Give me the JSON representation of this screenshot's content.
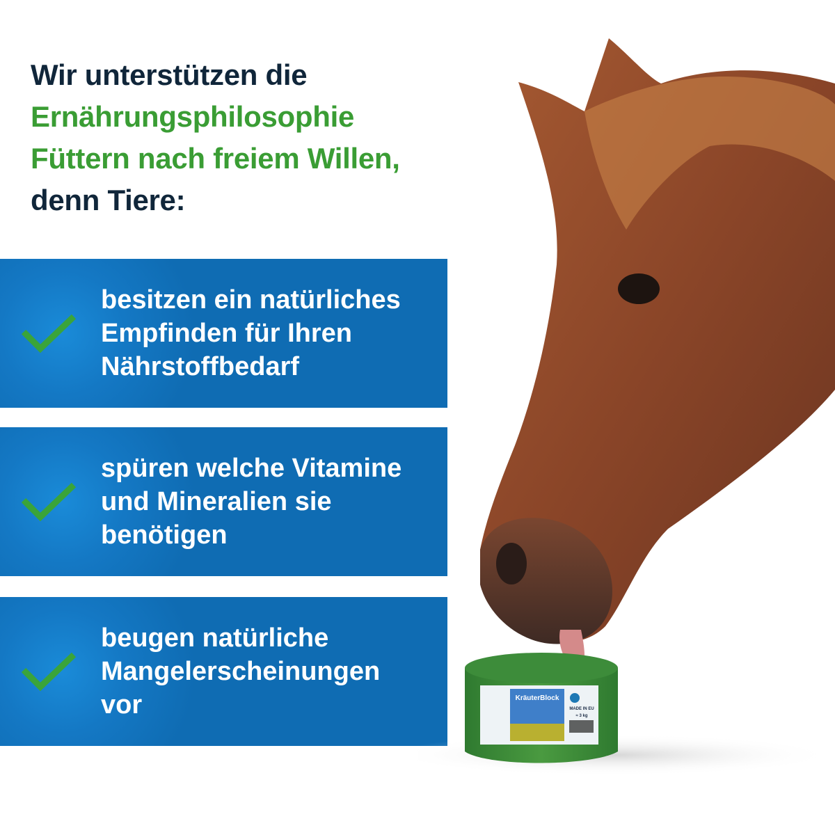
{
  "heading": {
    "line1": "Wir unterstützen die",
    "line2": "Ernährungsphilosophie",
    "line3": "Füttern nach freiem Willen,",
    "line4": "denn Tiere:"
  },
  "benefits": [
    {
      "icon": "check-icon",
      "lines": [
        "besitzen ein natürliches",
        "Empfinden für Ihren",
        "Nährstoffbedarf"
      ]
    },
    {
      "icon": "check-icon",
      "lines": [
        "spüren welche Vitamine",
        "und Mineralien sie",
        "benötigen"
      ]
    },
    {
      "icon": "check-icon",
      "lines": [
        "beugen natürliche",
        "Mangelerscheinungen",
        "vor"
      ]
    }
  ],
  "product": {
    "brand_logo": "KräuterBlock",
    "badge": "MADE IN EU",
    "weight": "≈ 3 kg"
  },
  "colors": {
    "dark_text": "#10263a",
    "accent_green": "#3a9d34",
    "panel_blue": "#0f6cb3",
    "block_green": "#3f8a3a",
    "horse_brown": "#8a4a2c"
  }
}
